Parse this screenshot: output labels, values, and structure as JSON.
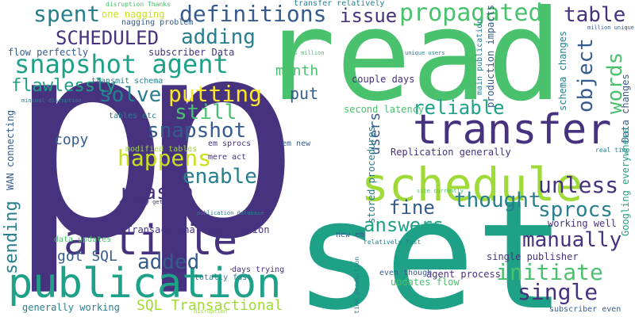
{
  "words": {
    "p1": "p",
    "p2": "p",
    "read": "read",
    "set": "set",
    "transfer": "transfer",
    "schedule": "schedule",
    "article": "article",
    "publication": "publication",
    "snapshot_agent": "snapshot agent",
    "propagated": "propagated",
    "definitions": "definitions",
    "scheduled": "SCHEDULED",
    "adding": "adding",
    "spent": "spent",
    "issue": "issue",
    "table": "table",
    "object": "object",
    "words": "words",
    "putting": "putting",
    "solve": "solve",
    "still": "still",
    "snapshot": "snapshot",
    "happens": "happens",
    "enable": "enable",
    "reason": "reason",
    "unless": "unless",
    "thought": "thought",
    "fine": "fine",
    "sprocs": "sprocs",
    "answers": "answers",
    "manually": "manually",
    "initiate": "initiate",
    "single": "single",
    "added": "added",
    "reliable": "reliable",
    "users": "users",
    "flawlessly": "flawlessly",
    "copy": "copy",
    "sending": "sending",
    "month": "month",
    "put": "put",
    "got_sql": "got SQL",
    "sql_transactional": "SQL Transactional",
    "transactional_replication": "Transactional Replication",
    "replication_generally": "Replication generally",
    "second_latency": "second latency",
    "subscriber_data": "subscriber Data",
    "flow_perfectly": "flow perfectly",
    "transmit_schema": "transmit schema",
    "one_nagging": "one nagging",
    "nagging_problem": "nagging problem",
    "couple_days": "couple days",
    "tables_etc": "tables etc",
    "modified_tables": "modified tables",
    "em_sprocs": "em sprocs",
    "em_new": "em new",
    "mere_act": "mere act",
    "wan_connecting": "WAN connecting",
    "stored_procedures": "stored procedures",
    "working_well": "working well",
    "single_publisher": "single publisher",
    "agent_process": "agent process",
    "even_though": "even though",
    "data_updates": "data updates",
    "totally_fast": "totally fast",
    "updates_flow": "updates flow",
    "generally_working": "generally working",
    "days_trying": "days trying",
    "subscriber_even": "subscriber even",
    "time_production": "time production",
    "new_em": "new em",
    "relatively_fast": "relatively fast",
    "production_impacts": "production impacts",
    "schema_changes": "schema changes",
    "data_changes": "Data changes",
    "googling_everywhere": "Googling everywhere",
    "real_time": "real time",
    "site_currently": "site currently",
    "main_publication": "main publication",
    "million_unique": "million unique",
    "unique_users": "unique users",
    "gets_million": "gets million",
    "minimal_disruption": "minimal disruption",
    "disruption_thanks": "disruption Thanks",
    "transfer_relatively": "transfer relatively",
    "currently_gets": "currently gets",
    "publication_database": "publication database",
    "tiny1": "disruption",
    "tiny2": "·"
  }
}
